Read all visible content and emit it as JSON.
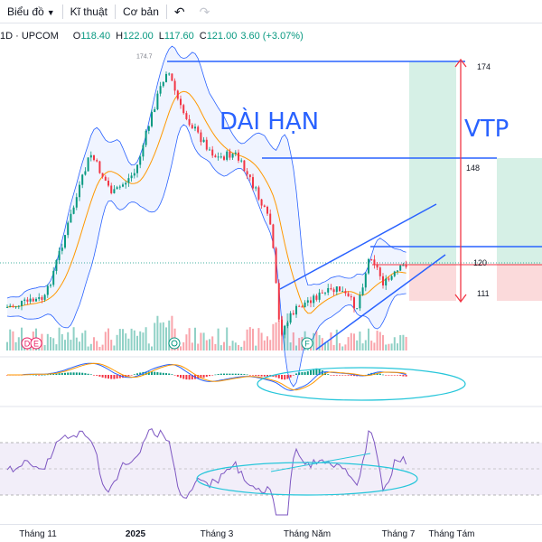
{
  "toolbar": {
    "chart_label": "Biểu đồ",
    "technical_label": "Kĩ thuật",
    "fundamental_label": "Cơ bản",
    "undo_icon": "undo-icon",
    "redo_icon": "redo-icon"
  },
  "legend": {
    "symbol": "1D · UPCOM",
    "open_key": "O",
    "open": "118.40",
    "high_key": "H",
    "high": "122.00",
    "low_key": "L",
    "low": "117.60",
    "close_key": "C",
    "close": "121.00",
    "change": "3.60 (+3.07%)"
  },
  "annotations": {
    "long_term": "DÀI HẠN",
    "ticker": "VTP"
  },
  "price_labels": {
    "top_line": "174.7",
    "target_1": "174",
    "target_2": "148",
    "entry": "120",
    "stop": "111"
  },
  "event_markers": [
    "D",
    "E",
    "F"
  ],
  "time_axis": [
    "Tháng 11",
    "2025",
    "Tháng 3",
    "Tháng Năm",
    "Tháng 7",
    "Tháng Tám"
  ],
  "colors": {
    "up": "#089981",
    "down": "#f23645",
    "line_blue": "#2962ff",
    "bollinger": "#2962ff",
    "ma_orange": "#ff9800",
    "rsi_line": "#7e57c2",
    "profit_zone": "#d6f0e6",
    "loss_zone": "#fbdadb"
  }
}
